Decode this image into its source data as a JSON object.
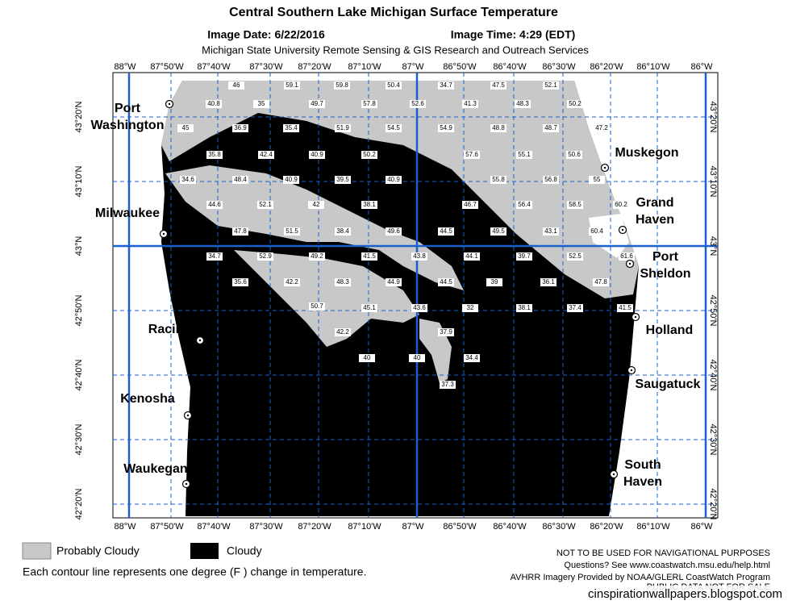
{
  "header": {
    "title": "Central Southern Lake Michigan Surface Temperature",
    "image_date": "Image Date: 6/22/2016",
    "image_time": "Image Time: 4:29 (EDT)",
    "subtitle": "Michigan State University Remote Sensing & GIS Research and Outreach Services"
  },
  "longitude_labels": [
    "88°W",
    "87°50'W",
    "87°40'W",
    "87°30'W",
    "87°20'W",
    "87°10'W",
    "87°W",
    "86°50'W",
    "86°40'W",
    "86°30'W",
    "86°20'W",
    "86°10'W",
    "86°W"
  ],
  "latitude_labels": [
    "43°20'N",
    "43°10'N",
    "43°N",
    "42°50'N",
    "42°40'N",
    "42°30'N",
    "42°20'N"
  ],
  "cities": [
    [
      "Port",
      "Washington"
    ],
    [
      "Milwaukee"
    ],
    [
      "Racine"
    ],
    [
      "Kenosha"
    ],
    [
      "Waukegan"
    ],
    [
      "Muskegon"
    ],
    [
      "Grand",
      "Haven"
    ],
    [
      "Port",
      "Sheldon"
    ],
    [
      "Holland"
    ],
    [
      "Saugatuck"
    ],
    [
      "South",
      "Haven"
    ]
  ],
  "temperature_labels": [
    "46",
    "59.1",
    "59.8",
    "50.4",
    "34.7",
    "47.5",
    "52.1",
    "40.8",
    "35",
    "49.7",
    "57.8",
    "52.6",
    "41.3",
    "48.3",
    "50.2",
    "45",
    "36.9",
    "35.4",
    "51.9",
    "54.5",
    "54.9",
    "48.8",
    "48.7",
    "47.2",
    "35.8",
    "42.4",
    "40.9",
    "50.2",
    "57.6",
    "55.1",
    "50.6",
    "34.6",
    "48.4",
    "40.9",
    "39.5",
    "40.9",
    "55.8",
    "56.8",
    "55",
    "44.6",
    "52.1",
    "42",
    "38.1",
    "46.7",
    "56.4",
    "58.5",
    "60.2",
    "47.8",
    "51.5",
    "38.4",
    "49.6",
    "44.5",
    "49.5",
    "43.1",
    "60.4",
    "34.7",
    "52.9",
    "49.2",
    "41.5",
    "43.8",
    "44.1",
    "39.7",
    "52.5",
    "61.6",
    "35.6",
    "42.2",
    "48.3",
    "44.9",
    "44.5",
    "39",
    "36.1",
    "47.8",
    "50.7",
    "45.1",
    "43.6",
    "32",
    "38.1",
    "37.4",
    "41.5",
    "42.2",
    "37.9",
    "40",
    "40",
    "34.4",
    "37.3"
  ],
  "legend": {
    "probably_cloudy": "Probably Cloudy",
    "cloudy": "Cloudy"
  },
  "notes": {
    "contour": "Each contour line represents one degree (F ) change in temperature.",
    "navigation": "NOT TO BE USED FOR NAVIGATIONAL PURPOSES",
    "questions": "Questions?  See www.coastwatch.msu.edu/help.html",
    "imagery": "AVHRR Imagery Provided by NOAA/GLERL CoastWatch Program",
    "public": "PUBLIC DATA NOT FOR SALE"
  },
  "watermark": "cinspirationwallpapers.blogspot.com"
}
